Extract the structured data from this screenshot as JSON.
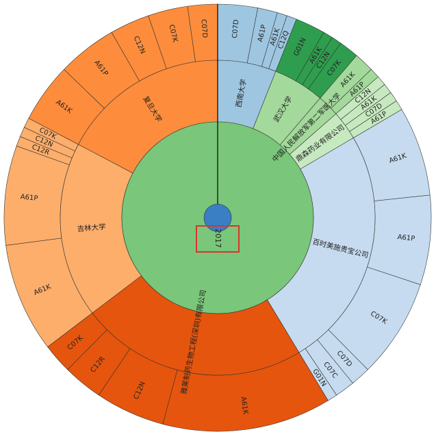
{
  "chart_data": {
    "type": "sunburst",
    "root": "2017",
    "highlight": "2017",
    "colors": {
      "root": "#3a7fc4",
      "year": "#7ac67a",
      "highlight_box": "#d9342b",
      "stroke": "#333333"
    },
    "organizations": [
      {
        "name": "西南大学",
        "color": "#9ec6e0",
        "mid_color": "#9ec6e0",
        "codes": [
          {
            "code": "C07D",
            "value": 4
          },
          {
            "code": "A61P",
            "value": 2
          },
          {
            "code": "A61K",
            "value": 1
          },
          {
            "code": "C12Q",
            "value": 1
          }
        ]
      },
      {
        "name": "武汉大学",
        "color": "#2e9e4e",
        "mid_color": "#a3d99b",
        "codes": [
          {
            "code": "G01N",
            "value": 3
          },
          {
            "code": "A61K",
            "value": 1
          },
          {
            "code": "C12N",
            "value": 1
          },
          {
            "code": "C07K",
            "value": 2
          }
        ]
      },
      {
        "name": "中国人民解放军第二军医大学",
        "color": "#a3d99b",
        "mid_color": "#a3d99b",
        "codes": [
          {
            "code": "A61K",
            "value": 2
          },
          {
            "code": "A61P",
            "value": 1
          }
        ]
      },
      {
        "name": "鼎森药业有限公司",
        "color": "#c7e9c0",
        "mid_color": "#c7e9c0",
        "codes": [
          {
            "code": "C12N",
            "value": 1
          },
          {
            "code": "A61K",
            "value": 1
          },
          {
            "code": "C07D",
            "value": 1
          },
          {
            "code": "A61P",
            "value": 1
          }
        ]
      },
      {
        "name": "百时美施贵宝公司",
        "color": "#c6dbef",
        "mid_color": "#c6dbef",
        "codes": [
          {
            "code": "A61K",
            "value": 9
          },
          {
            "code": "A61P",
            "value": 9
          },
          {
            "code": "C07K",
            "value": 10
          },
          {
            "code": "C07D",
            "value": 2
          },
          {
            "code": "C07C",
            "value": 2
          },
          {
            "code": "G01N",
            "value": 1
          }
        ]
      },
      {
        "name": "雅莱制药生物工程(深圳)有限公司",
        "name_overlap": "雅莱制药生物工程(深圳)有限公司",
        "color": "#e6550d",
        "mid_color": "#e6550d",
        "codes": [
          {
            "code": "A61K",
            "value": 17
          },
          {
            "code": "C12N",
            "value": 7
          },
          {
            "code": "C12R",
            "value": 4
          },
          {
            "code": "C07K",
            "value": 3
          }
        ]
      },
      {
        "name": "吉林大学",
        "color": "#fdae6b",
        "mid_color": "#fdae6b",
        "codes": [
          {
            "code": "A61K",
            "value": 11
          },
          {
            "code": "A61P",
            "value": 10
          },
          {
            "code": "C12R",
            "value": 1
          },
          {
            "code": "C12N",
            "value": 1
          },
          {
            "code": "C07K",
            "value": 1
          }
        ]
      },
      {
        "name": "复旦大学",
        "color": "#fd8d3c",
        "mid_color": "#fd8d3c",
        "codes": [
          {
            "code": "A61K",
            "value": 6
          },
          {
            "code": "A61P",
            "value": 6
          },
          {
            "code": "C12N",
            "value": 4
          },
          {
            "code": "C07K",
            "value": 4
          },
          {
            "code": "C07D",
            "value": 3
          }
        ]
      }
    ]
  }
}
